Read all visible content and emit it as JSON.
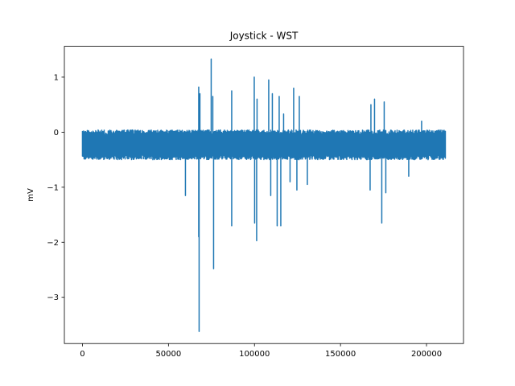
{
  "chart_data": {
    "type": "line",
    "title": "Joystick - WST",
    "xlabel": "",
    "ylabel": "mV",
    "xlim": [
      -10500,
      221500
    ],
    "ylim": [
      -3.84,
      1.56
    ],
    "x_ticks": [
      0,
      50000,
      100000,
      150000,
      200000
    ],
    "x_tick_labels": [
      "0",
      "50000",
      "100000",
      "150000",
      "200000"
    ],
    "y_ticks": [
      -3,
      -2,
      -1,
      0,
      1
    ],
    "y_tick_labels": [
      "−3",
      "−2",
      "−1",
      "0",
      "1"
    ],
    "grid": false,
    "line_color": "#1f77b4",
    "series": [
      {
        "x_range": [
          0,
          211000
        ],
        "baseline": -0.27,
        "band": [
          -0.5,
          0.04
        ],
        "spikes": [
          {
            "x": 59800,
            "y": -1.15
          },
          {
            "x": 67500,
            "y": 0.82
          },
          {
            "x": 67700,
            "y": -1.9
          },
          {
            "x": 67900,
            "y": -3.62
          },
          {
            "x": 68300,
            "y": 0.7
          },
          {
            "x": 74800,
            "y": 1.33
          },
          {
            "x": 75900,
            "y": 0.65
          },
          {
            "x": 76300,
            "y": -2.48
          },
          {
            "x": 86800,
            "y": 0.75
          },
          {
            "x": 86900,
            "y": -1.7
          },
          {
            "x": 99800,
            "y": 1.0
          },
          {
            "x": 100100,
            "y": -1.65
          },
          {
            "x": 101200,
            "y": -1.97
          },
          {
            "x": 101600,
            "y": 0.6
          },
          {
            "x": 108400,
            "y": 0.95
          },
          {
            "x": 109500,
            "y": -1.15
          },
          {
            "x": 110300,
            "y": 0.7
          },
          {
            "x": 113200,
            "y": -1.7
          },
          {
            "x": 114300,
            "y": 0.65
          },
          {
            "x": 115400,
            "y": -1.7
          },
          {
            "x": 117000,
            "y": 0.33
          },
          {
            "x": 120600,
            "y": -0.9
          },
          {
            "x": 122700,
            "y": 0.8
          },
          {
            "x": 124700,
            "y": -1.05
          },
          {
            "x": 126100,
            "y": 0.65
          },
          {
            "x": 130800,
            "y": -0.95
          },
          {
            "x": 167300,
            "y": -1.05
          },
          {
            "x": 167800,
            "y": 0.5
          },
          {
            "x": 169800,
            "y": 0.6
          },
          {
            "x": 174100,
            "y": -1.65
          },
          {
            "x": 175400,
            "y": 0.55
          },
          {
            "x": 176300,
            "y": -1.1
          },
          {
            "x": 189700,
            "y": -0.8
          },
          {
            "x": 197200,
            "y": 0.2
          }
        ]
      }
    ]
  }
}
